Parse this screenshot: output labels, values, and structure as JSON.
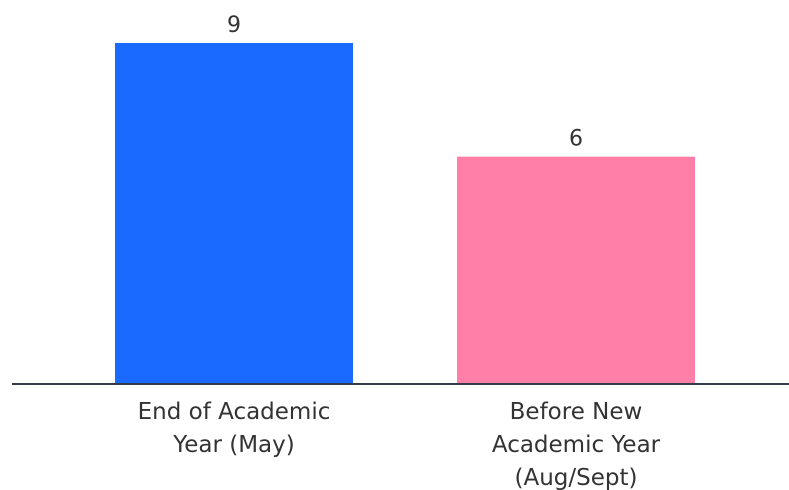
{
  "chart_data": {
    "type": "bar",
    "categories": [
      [
        "End of Academic",
        "Year (May)"
      ],
      [
        "Before New",
        "Academic Year",
        "(Aug/Sept)"
      ]
    ],
    "values": [
      9,
      6
    ],
    "colors": [
      "#1a6aff",
      "#ff7fa8"
    ],
    "title": "",
    "xlabel": "",
    "ylabel": "",
    "ylim": [
      0,
      9
    ],
    "grid": false,
    "legend": "none"
  }
}
